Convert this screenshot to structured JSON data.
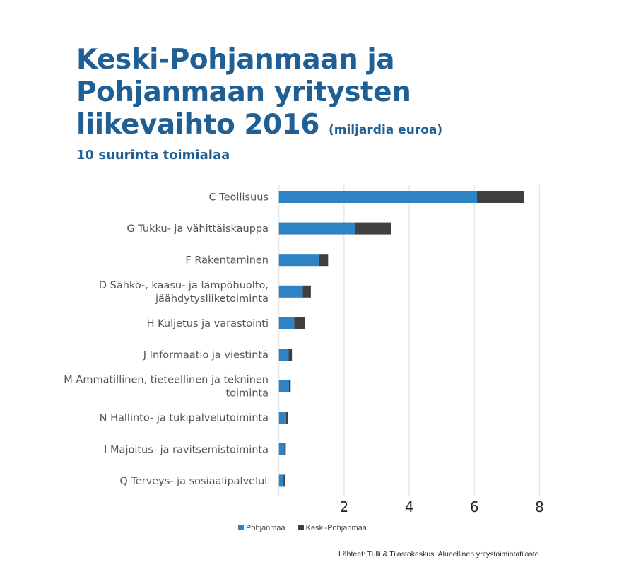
{
  "chart_data": {
    "type": "bar",
    "orientation": "horizontal",
    "stacked": true,
    "title": "Keski-Pohjanmaan ja Pohjanmaan yritysten liikevaihto 2016",
    "title_unit": "(miljardia euroa)",
    "subtitle": "10 suurinta toimialaa",
    "categories": [
      [
        "C Teollisuus"
      ],
      [
        "G Tukku- ja vähittäiskauppa"
      ],
      [
        "F Rakentaminen"
      ],
      [
        "D Sähkö-, kaasu- ja lämpöhuolto,",
        "jäähdytysliiketoiminta"
      ],
      [
        "H Kuljetus ja varastointi"
      ],
      [
        "J Informaatio ja viestintä"
      ],
      [
        "M Ammatillinen, tieteellinen ja tekninen",
        "toiminta"
      ],
      [
        "N Hallinto- ja tukipalvelutoiminta"
      ],
      [
        "I Majoitus- ja ravitsemistoiminta"
      ],
      [
        "Q Terveys- ja sosiaalipalvelut"
      ]
    ],
    "series": [
      {
        "name": "Pohjanmaa",
        "color": "#2e83c5",
        "values": [
          6.08,
          2.34,
          1.22,
          0.73,
          0.47,
          0.3,
          0.31,
          0.22,
          0.17,
          0.14
        ]
      },
      {
        "name": "Keski-Pohjanmaa",
        "color": "#404040",
        "values": [
          1.44,
          1.1,
          0.29,
          0.25,
          0.33,
          0.1,
          0.05,
          0.05,
          0.04,
          0.05
        ]
      }
    ],
    "xlim": [
      0,
      8
    ],
    "xticks": [
      2,
      4,
      6,
      8
    ],
    "grid": true,
    "legend": "bottom",
    "source": "Lähteet: Tulli & Tilastokeskus. Alueellinen yritystoimintatilasto"
  }
}
